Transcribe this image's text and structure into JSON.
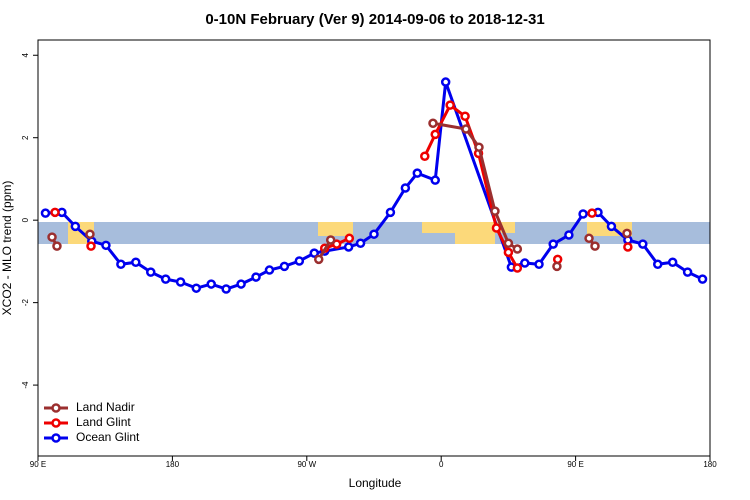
{
  "chart_data": {
    "type": "line",
    "title": "0-10N February (Ver 9)   2014-09-06 to 2018-12-31",
    "x_label": "Longitude",
    "y_label": "XCO2 - MLO trend (ppm)",
    "xlim": [
      90,
      540
    ],
    "xticks": [
      {
        "value": 90,
        "label": "90 E"
      },
      {
        "value": 180,
        "label": "180"
      },
      {
        "value": 270,
        "label": "90 W"
      },
      {
        "value": 360,
        "label": "0"
      },
      {
        "value": 450,
        "label": "90 E"
      },
      {
        "value": 540,
        "label": "180"
      }
    ],
    "ylim": [
      -5.72,
      4.37
    ],
    "yticks": [
      -4,
      -2,
      0,
      2,
      4
    ],
    "legend": "bottom-left",
    "series": [
      {
        "name": "Land Nadir",
        "color": "#9b2f2f",
        "x": [
          99.4,
          102.7,
          null,
          124.8,
          null,
          278,
          286,
          null,
          354.5,
          376.6,
          385.3,
          396,
          405,
          411,
          null,
          437.5,
          null,
          459,
          463,
          null,
          484.4
        ],
        "values": [
          -0.41,
          -0.63,
          null,
          -0.34,
          null,
          -0.95,
          -0.48,
          null,
          2.35,
          2.21,
          1.77,
          0.22,
          -0.56,
          -0.7,
          null,
          -1.12,
          null,
          -0.44,
          -0.63,
          null,
          -0.32
        ]
      },
      {
        "name": "Land Glint",
        "color": "#ee0000",
        "x": [
          101.4,
          null,
          125.5,
          null,
          282,
          290,
          298.5,
          null,
          349,
          356,
          366,
          376,
          385,
          397,
          405,
          411,
          null,
          438,
          null,
          461,
          null,
          485
        ],
        "values": [
          0.19,
          null,
          -0.63,
          null,
          -0.68,
          -0.58,
          -0.44,
          null,
          1.55,
          2.08,
          2.79,
          2.52,
          1.62,
          -0.19,
          -0.78,
          -1.16,
          null,
          -0.95,
          null,
          0.17,
          null,
          -0.65
        ]
      },
      {
        "name": "Ocean Glint",
        "color": "#0000ee",
        "x": [
          95,
          106,
          115,
          126,
          135.5,
          145.5,
          155.5,
          165.5,
          175.5,
          185.5,
          196,
          206,
          216,
          226,
          236,
          245,
          255,
          265,
          275,
          282,
          298,
          306,
          315,
          326,
          336,
          344,
          356,
          363,
          407,
          416,
          425.5,
          435,
          445.5,
          455,
          465,
          474,
          485,
          495,
          505,
          515,
          525,
          535
        ],
        "values": [
          0.17,
          0.19,
          -0.15,
          -0.51,
          -0.61,
          -1.07,
          -1.02,
          -1.26,
          -1.43,
          -1.5,
          -1.65,
          -1.55,
          -1.67,
          -1.55,
          -1.38,
          -1.21,
          -1.12,
          -0.99,
          -0.8,
          -0.75,
          -0.65,
          -0.56,
          -0.34,
          0.19,
          0.78,
          1.14,
          0.97,
          3.35,
          -1.14,
          -1.04,
          -1.07,
          -0.58,
          -0.36,
          0.15,
          0.19,
          -0.15,
          -0.48,
          -0.58,
          -1.07,
          -1.02,
          -1.26,
          -1.43
        ]
      }
    ]
  }
}
